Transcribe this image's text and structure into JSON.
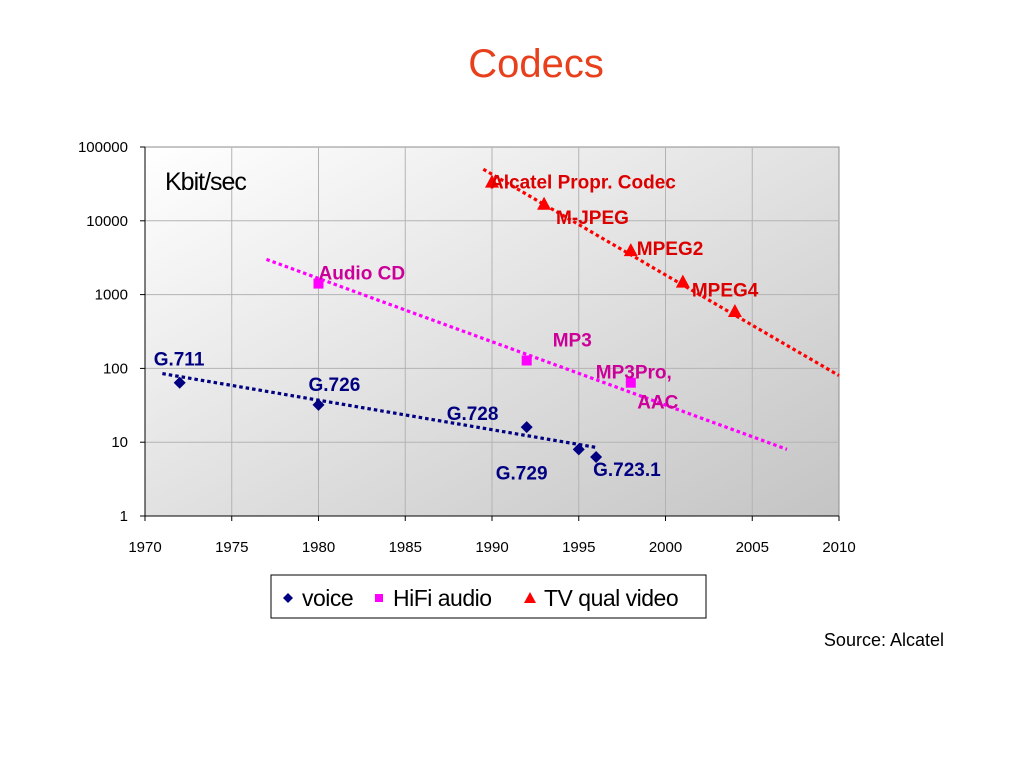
{
  "slide": {
    "title": "Codecs",
    "source": "Source: Alcatel"
  },
  "chart_data": {
    "type": "scatter",
    "unit_label": "Kbit/sec",
    "xlim": [
      1970,
      2010
    ],
    "ylim": [
      1,
      100000
    ],
    "y_scale": "log",
    "x_ticks": [
      "1970",
      "1975",
      "1980",
      "1985",
      "1990",
      "1995",
      "2000",
      "2005",
      "2010"
    ],
    "y_ticks": [
      "1",
      "10",
      "100",
      "1000",
      "10000",
      "100000"
    ],
    "grid": true,
    "legend_position": "bottom",
    "series": [
      {
        "name": "voice",
        "marker": "diamond",
        "color": "#000080",
        "trend": [
          [
            1971,
            85
          ],
          [
            1996,
            8.5
          ]
        ],
        "points": [
          {
            "x": 1972,
            "y": 64,
            "label": "G.711"
          },
          {
            "x": 1980,
            "y": 32,
            "label": "G.726"
          },
          {
            "x": 1992,
            "y": 16,
            "label": "G.728"
          },
          {
            "x": 1995,
            "y": 8,
            "label": "G.729"
          },
          {
            "x": 1996,
            "y": 6.3,
            "label": "G.723.1"
          }
        ]
      },
      {
        "name": "HiFi audio",
        "marker": "square",
        "color": "#ff00ff",
        "label_color": "#cc0099",
        "trend": [
          [
            1977,
            3000
          ],
          [
            2007,
            8
          ]
        ],
        "points": [
          {
            "x": 1980,
            "y": 1411,
            "label": "Audio CD"
          },
          {
            "x": 1992,
            "y": 128,
            "label": "MP3"
          },
          {
            "x": 1998,
            "y": 64,
            "label": "MP3Pro, AAC"
          }
        ]
      },
      {
        "name": "TV qual video",
        "marker": "triangle",
        "color": "#ff0000",
        "label_color": "#dd0000",
        "trend": [
          [
            1989.5,
            50000
          ],
          [
            2010,
            80
          ]
        ],
        "points": [
          {
            "x": 1990,
            "y": 34000,
            "label": "Alcatel Propr. Codec"
          },
          {
            "x": 1993,
            "y": 17000,
            "label": "M-JPEG"
          },
          {
            "x": 1998,
            "y": 4000,
            "label": "MPEG2"
          },
          {
            "x": 2001,
            "y": 1500,
            "label": "MPEG4"
          },
          {
            "x": 2004,
            "y": 600,
            "label": ""
          }
        ]
      }
    ]
  }
}
